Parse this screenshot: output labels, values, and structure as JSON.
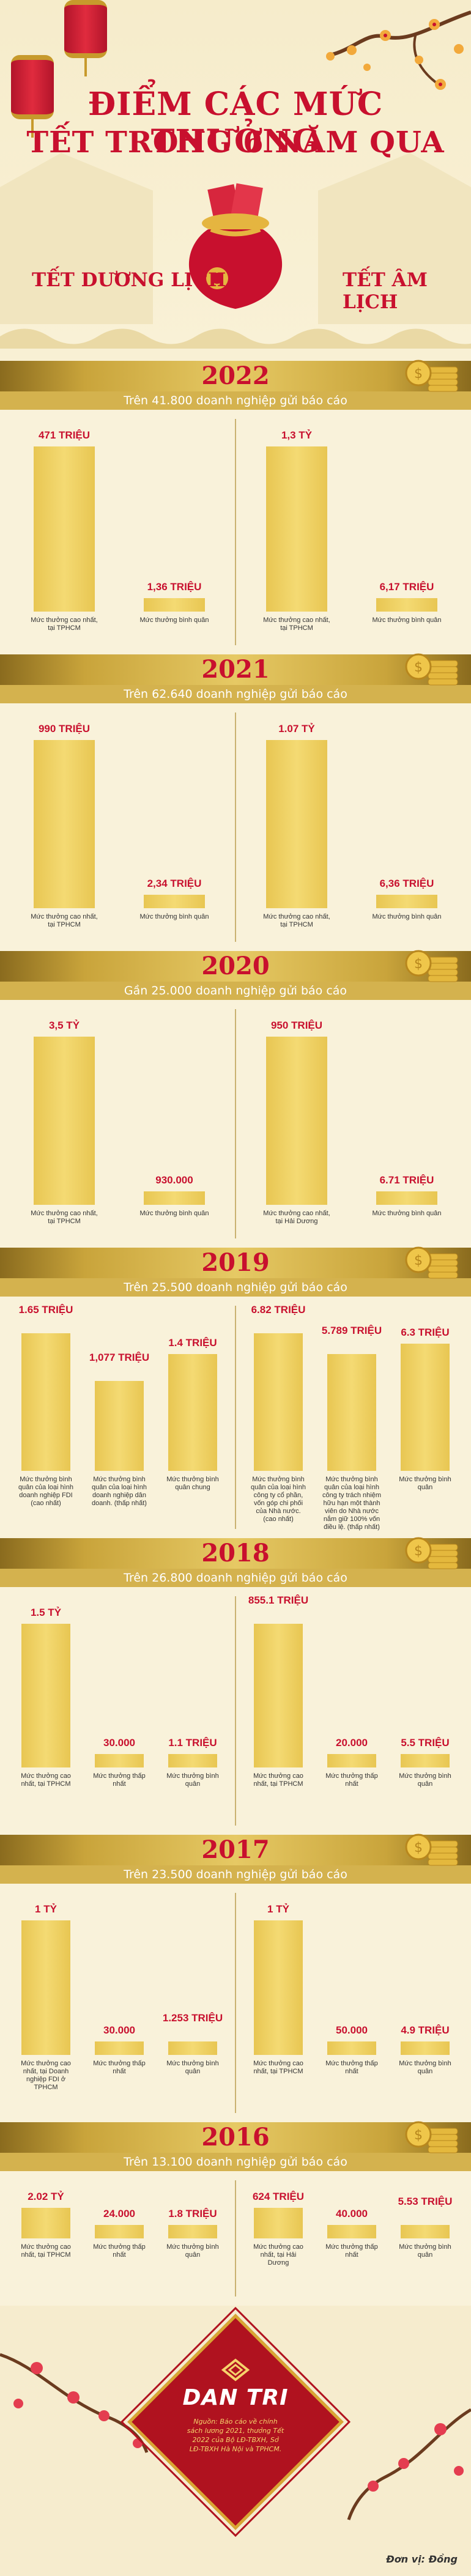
{
  "header": {
    "title_line1": "ĐIỂM CÁC MỨC THƯỞNG",
    "title_line2": "TẾT TRONG 6 NĂM QUA",
    "label_left": "TẾT DƯƠNG LỊCH",
    "label_right": "TẾT ÂM LỊCH"
  },
  "colors": {
    "accent_red": "#c8102e",
    "bar_gold": "#f0d36b",
    "band_gold": "#d4b24e",
    "background": "#f8f0d4"
  },
  "chart_data": [
    {
      "type": "bar",
      "year": "2022",
      "subtitle": "Trên 41.800 doanh nghiệp gửi báo cáo",
      "left": [
        {
          "label": "471 TRIỆU",
          "value": 471000000,
          "caption": "Mức thưởng cao nhất, tại TPHCM"
        },
        {
          "label": "1,36 TRIỆU",
          "value": 1360000,
          "caption": "Mức thưởng bình quân"
        }
      ],
      "right": [
        {
          "label": "1,3 TỶ",
          "value": 1300000000,
          "caption": "Mức thưởng cao nhất, tại TPHCM"
        },
        {
          "label": "6,17 TRIỆU",
          "value": 6170000,
          "caption": "Mức thưởng bình quân"
        }
      ]
    },
    {
      "type": "bar",
      "year": "2021",
      "subtitle": "Trên 62.640 doanh nghiệp gửi báo cáo",
      "left": [
        {
          "label": "990 TRIỆU",
          "value": 990000000,
          "caption": "Mức thưởng cao nhất, tại TPHCM"
        },
        {
          "label": "2,34 TRIỆU",
          "value": 2340000,
          "caption": "Mức thưởng bình quân"
        }
      ],
      "right": [
        {
          "label": "1.07 TỶ",
          "value": 1070000000,
          "caption": "Mức thưởng cao nhất, tại TPHCM"
        },
        {
          "label": "6,36 TRIỆU",
          "value": 6360000,
          "caption": "Mức thưởng bình quân"
        }
      ]
    },
    {
      "type": "bar",
      "year": "2020",
      "subtitle": "Gần 25.000 doanh nghiệp gửi báo cáo",
      "left": [
        {
          "label": "3,5 TỶ",
          "value": 3500000000,
          "caption": "Mức thưởng cao nhất, tại TPHCM"
        },
        {
          "label": "930.000",
          "value": 930000,
          "caption": "Mức thưởng bình quân"
        }
      ],
      "right": [
        {
          "label": "950 TRIỆU",
          "value": 950000000,
          "caption": "Mức thưởng cao nhất, tại Hải Dương"
        },
        {
          "label": "6.71 TRIỆU",
          "value": 6710000,
          "caption": "Mức thưởng bình quân"
        }
      ]
    },
    {
      "type": "bar",
      "year": "2019",
      "subtitle": "Trên 25.500 doanh nghiệp gửi báo cáo",
      "left": [
        {
          "label": "1.65 TRIỆU",
          "value": 1650000,
          "caption": "Mức thưởng bình quân của loại hình doanh nghiệp FDI (cao nhất)"
        },
        {
          "label": "1,077 TRIỆU",
          "value": 1077000,
          "caption": "Mức thưởng bình quân của loại hình doanh nghiệp dân doanh. (thấp nhất)"
        },
        {
          "label": "1.4 TRIỆU",
          "value": 1400000,
          "caption": "Mức thưởng bình quân chung"
        }
      ],
      "right": [
        {
          "label": "6.82 TRIỆU",
          "value": 6820000,
          "caption": "Mức thưởng bình quân của loại hình công ty cổ phần, vốn góp chi phối của Nhà nước. (cao nhất)"
        },
        {
          "label": "5.789 TRIỆU",
          "value": 5789000,
          "caption": "Mức thưởng bình quân của loại hình công ty trách nhiệm hữu hạn một thành viên do Nhà nước nắm giữ 100% vốn điều lệ. (thấp nhất)"
        },
        {
          "label": "6.3 TRIỆU",
          "value": 6300000,
          "caption": "Mức thưởng bình quân"
        }
      ]
    },
    {
      "type": "bar",
      "year": "2018",
      "subtitle": "Trên 26.800 doanh nghiệp gửi báo cáo",
      "left": [
        {
          "label": "1.5 TỶ",
          "value": 1500000000,
          "caption": "Mức thưởng cao nhất, tại TPHCM"
        },
        {
          "label": "30.000",
          "value": 30000,
          "caption": "Mức thưởng thấp nhất"
        },
        {
          "label": "1.1 TRIỆU",
          "value": 1100000,
          "caption": "Mức thưởng bình quân"
        }
      ],
      "right": [
        {
          "label": "855.1 TRIỆU",
          "value": 855100000,
          "caption": "Mức thưởng cao nhất, tại TPHCM"
        },
        {
          "label": "20.000",
          "value": 20000,
          "caption": "Mức thưởng thấp nhất"
        },
        {
          "label": "5.5 TRIỆU",
          "value": 5500000,
          "caption": "Mức thưởng bình quân"
        }
      ]
    },
    {
      "type": "bar",
      "year": "2017",
      "subtitle": "Trên 23.500 doanh nghiệp gửi báo cáo",
      "left": [
        {
          "label": "1 TỶ",
          "value": 1000000000,
          "caption": "Mức thưởng cao nhất, tại Doanh nghiệp FDI ở TPHCM"
        },
        {
          "label": "30.000",
          "value": 30000,
          "caption": "Mức thưởng thấp nhất"
        },
        {
          "label": "1.253 TRIỆU",
          "value": 1253000,
          "caption": "Mức thưởng bình quân"
        }
      ],
      "right": [
        {
          "label": "1 TỶ",
          "value": 1000000000,
          "caption": "Mức thưởng cao nhất, tại TPHCM"
        },
        {
          "label": "50.000",
          "value": 50000,
          "caption": "Mức thưởng thấp nhất"
        },
        {
          "label": "4.9 TRIỆU",
          "value": 4900000,
          "caption": "Mức thưởng bình quân"
        }
      ]
    },
    {
      "type": "bar",
      "year": "2016",
      "subtitle": "Trên 13.100 doanh nghiệp gửi báo cáo",
      "left": [
        {
          "label": "2.02 TỶ",
          "value": 2020000000,
          "caption": "Mức thưởng cao nhất, tại TPHCM"
        },
        {
          "label": "24.000",
          "value": 24000,
          "caption": "Mức thưởng thấp nhất"
        },
        {
          "label": "1.8 TRIỆU",
          "value": 1800000,
          "caption": "Mức thưởng bình quân"
        }
      ],
      "right": [
        {
          "label": "624 TRIỆU",
          "value": 624000000,
          "caption": "Mức thưởng cao nhất, tại Hải Dương"
        },
        {
          "label": "40.000",
          "value": 40000,
          "caption": "Mức thưởng thấp nhất"
        },
        {
          "label": "5.53 TRIỆU",
          "value": 5530000,
          "caption": "Mức thưởng bình quân"
        }
      ]
    }
  ],
  "footer": {
    "brand": "DAN TRI",
    "source": "Nguồn: Báo cáo về chính sách lương 2021, thưởng Tết 2022 của Bộ LĐ-TBXH, Sở LĐ-TBXH Hà Nội và TPHCM.",
    "author": "Đơn vị: Đồng"
  }
}
